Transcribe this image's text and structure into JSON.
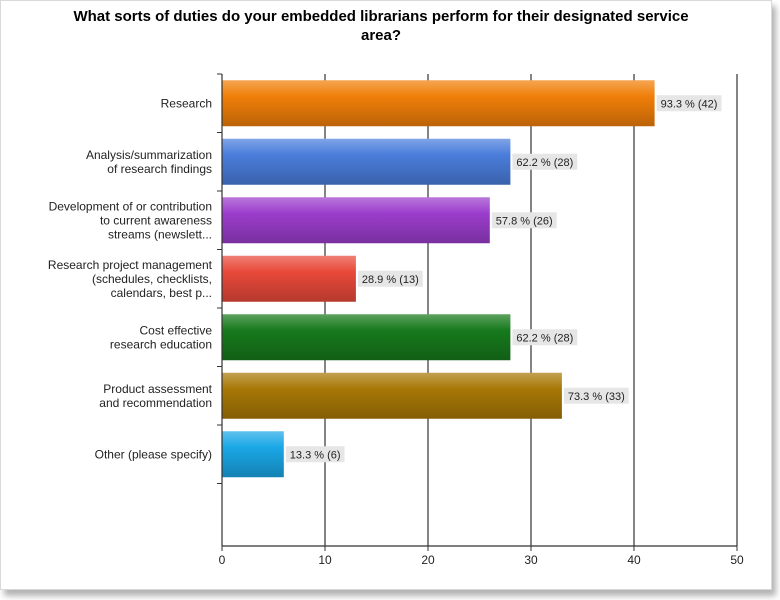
{
  "chart_data": {
    "type": "bar",
    "orientation": "horizontal",
    "title": "What sorts of duties do your embedded librarians perform for their designated service area?",
    "title_lines": [
      "What sorts of duties do your embedded librarians perform for their designated service",
      "area?"
    ],
    "categories": [
      [
        "Research"
      ],
      [
        "Analysis/summarization",
        "of research findings"
      ],
      [
        "Development of or contribution",
        "to current awareness",
        "streams (newslett..."
      ],
      [
        "Research project management",
        "(schedules, checklists,",
        "calendars, best p..."
      ],
      [
        "Cost effective",
        "research education"
      ],
      [
        "Product assessment",
        "and recommendation"
      ],
      [
        "Other (please specify)"
      ]
    ],
    "values": [
      42,
      28,
      26,
      13,
      28,
      33,
      6
    ],
    "data_labels": [
      "93.3 % (42)",
      "62.2 % (28)",
      "57.8 % (26)",
      "28.9 % (13)",
      "62.2 % (28)",
      "73.3 % (33)",
      "13.3 % (6)"
    ],
    "colors": [
      "#f07f09",
      "#4a7ddb",
      "#9b3dcc",
      "#e8493a",
      "#177a1c",
      "#a87806",
      "#1aa7e6"
    ],
    "xlim": [
      0,
      50
    ],
    "xticks": [
      0,
      10,
      20,
      30,
      40,
      50
    ],
    "grid": true,
    "xlabel": "",
    "ylabel": ""
  }
}
